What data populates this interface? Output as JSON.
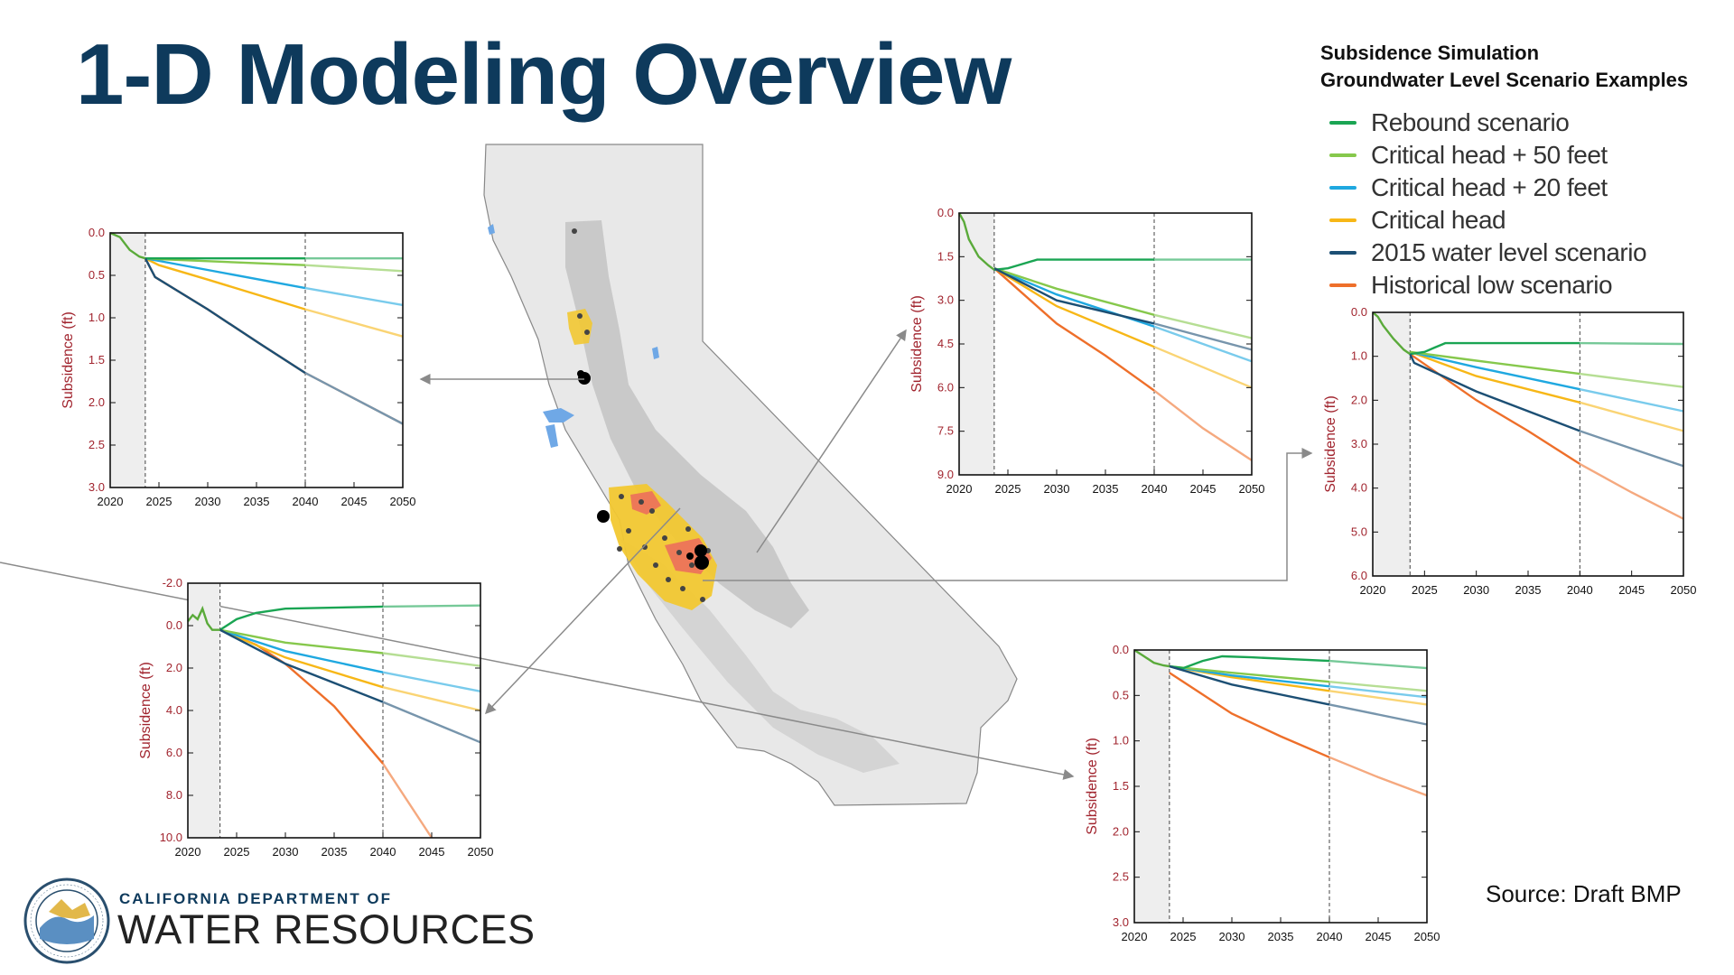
{
  "page": {
    "title": "1-D Modeling Overview",
    "source": "Source: Draft BMP"
  },
  "legend": {
    "heading_line1": "Subsidence Simulation",
    "heading_line2": "Groundwater Level Scenario Examples",
    "items": [
      {
        "label": "Rebound scenario",
        "color": "#1aa553"
      },
      {
        "label": "Critical head + 50 feet",
        "color": "#86c84c"
      },
      {
        "label": "Critical head + 20 feet",
        "color": "#1fa8e0"
      },
      {
        "label": "Critical head",
        "color": "#f7b717"
      },
      {
        "label": "2015 water level scenario",
        "color": "#1c4f74"
      },
      {
        "label": "Historical low scenario",
        "color": "#ee6f2a"
      }
    ]
  },
  "logo": {
    "line1": "CALIFORNIA DEPARTMENT OF",
    "line2": "WATER RESOURCES",
    "seal_text": "DEPARTMENT OF WATER RESOURCES · STATE OF CALIFORNIA ·"
  },
  "colors": {
    "title": "#0e3a5c",
    "axis_label": "#a1242e",
    "rebound": "#1aa553",
    "ch50": "#86c84c",
    "ch20": "#1fa8e0",
    "critical": "#f7b717",
    "wl2015": "#1c4f74",
    "histlow": "#ee6f2a",
    "map_land": "#e8e8e8",
    "map_valley": "#c9c9c9"
  },
  "chart_data": [
    {
      "type": "line",
      "id": "upper-left",
      "ylabel": "Subsidence (ft)",
      "x_ticks": [
        "2020",
        "2025",
        "2030",
        "2035",
        "2040",
        "2045",
        "2050"
      ],
      "y_ticks": [
        "0.0",
        "0.5",
        "1.0",
        "1.5",
        "2.0",
        "2.5",
        "3.0"
      ],
      "xlim": [
        2020,
        2050
      ],
      "ylim": [
        0,
        3
      ],
      "y_inverted": true,
      "history_shade": [
        2020,
        2023.6
      ],
      "dashed_x": [
        2023.6,
        2040
      ],
      "history": [
        [
          2020,
          0
        ],
        [
          2021,
          0.05
        ],
        [
          2022,
          0.2
        ],
        [
          2023,
          0.28
        ],
        [
          2023.6,
          0.3
        ]
      ],
      "series": [
        {
          "key": "rebound",
          "points": [
            [
              2023.6,
              0.3
            ],
            [
              2024.5,
              0.3
            ],
            [
              2050,
              0.3
            ]
          ]
        },
        {
          "key": "ch50",
          "points": [
            [
              2023.6,
              0.3
            ],
            [
              2025,
              0.31
            ],
            [
              2040,
              0.38
            ],
            [
              2050,
              0.45
            ]
          ]
        },
        {
          "key": "ch20",
          "points": [
            [
              2023.6,
              0.3
            ],
            [
              2025,
              0.33
            ],
            [
              2040,
              0.65
            ],
            [
              2050,
              0.85
            ]
          ]
        },
        {
          "key": "critical",
          "points": [
            [
              2023.6,
              0.3
            ],
            [
              2025,
              0.38
            ],
            [
              2030,
              0.55
            ],
            [
              2040,
              0.9
            ],
            [
              2050,
              1.22
            ]
          ]
        },
        {
          "key": "wl2015",
          "points": [
            [
              2023.6,
              0.3
            ],
            [
              2024.6,
              0.52
            ],
            [
              2030,
              0.9
            ],
            [
              2035,
              1.28
            ],
            [
              2040,
              1.65
            ],
            [
              2045,
              1.95
            ],
            [
              2050,
              2.25
            ]
          ]
        },
        {
          "key": "histlow",
          "points": [
            [
              2023.6,
              0.3
            ],
            [
              2024.6,
              0.52
            ],
            [
              2030,
              0.9
            ],
            [
              2035,
              1.28
            ],
            [
              2040,
              1.65
            ],
            [
              2045,
              1.95
            ],
            [
              2050,
              2.25
            ]
          ]
        }
      ]
    },
    {
      "type": "line",
      "id": "lower-left",
      "ylabel": "Subsidence (ft)",
      "x_ticks": [
        "2020",
        "2025",
        "2030",
        "2035",
        "2040",
        "2045",
        "2050"
      ],
      "y_ticks": [
        "-2.0",
        "0.0",
        "2.0",
        "4.0",
        "6.0",
        "8.0",
        "10.0"
      ],
      "xlim": [
        2020,
        2050
      ],
      "ylim": [
        -2,
        10
      ],
      "y_inverted": true,
      "history_shade": [
        2020,
        2023.3
      ],
      "dashed_x": [
        2023.3,
        2040
      ],
      "history": [
        [
          2020,
          -0.2
        ],
        [
          2020.5,
          -0.5
        ],
        [
          2021,
          -0.3
        ],
        [
          2021.5,
          -0.8
        ],
        [
          2022,
          -0.1
        ],
        [
          2022.5,
          0.2
        ],
        [
          2023.3,
          0.2
        ]
      ],
      "series": [
        {
          "key": "rebound",
          "points": [
            [
              2023.3,
              0.2
            ],
            [
              2025,
              -0.3
            ],
            [
              2027,
              -0.6
            ],
            [
              2030,
              -0.8
            ],
            [
              2040,
              -0.9
            ],
            [
              2050,
              -0.95
            ]
          ]
        },
        {
          "key": "ch50",
          "points": [
            [
              2023.3,
              0.2
            ],
            [
              2030,
              0.8
            ],
            [
              2040,
              1.3
            ],
            [
              2050,
              1.9
            ]
          ]
        },
        {
          "key": "ch20",
          "points": [
            [
              2023.3,
              0.2
            ],
            [
              2030,
              1.2
            ],
            [
              2040,
              2.2
            ],
            [
              2050,
              3.1
            ]
          ]
        },
        {
          "key": "critical",
          "points": [
            [
              2023.3,
              0.2
            ],
            [
              2030,
              1.5
            ],
            [
              2040,
              2.9
            ],
            [
              2050,
              4.0
            ]
          ]
        },
        {
          "key": "wl2015",
          "points": [
            [
              2023.3,
              0.2
            ],
            [
              2030,
              1.8
            ],
            [
              2040,
              3.6
            ],
            [
              2050,
              5.5
            ]
          ]
        },
        {
          "key": "histlow",
          "points": [
            [
              2023.3,
              0.2
            ],
            [
              2027,
              0.9
            ],
            [
              2030,
              1.8
            ],
            [
              2035,
              3.8
            ],
            [
              2040,
              6.5
            ],
            [
              2045,
              10.0
            ]
          ]
        }
      ]
    },
    {
      "type": "line",
      "id": "upper-center-right",
      "ylabel": "Subsidence (ft)",
      "x_ticks": [
        "2020",
        "2025",
        "2030",
        "2035",
        "2040",
        "2045",
        "2050"
      ],
      "y_ticks": [
        "0.0",
        "1.5",
        "3.0",
        "4.5",
        "6.0",
        "7.5",
        "9.0"
      ],
      "xlim": [
        2020,
        2050
      ],
      "ylim": [
        0,
        9
      ],
      "y_inverted": true,
      "history_shade": [
        2020,
        2023.6
      ],
      "dashed_x": [
        2023.6,
        2040
      ],
      "history": [
        [
          2020,
          0
        ],
        [
          2020.5,
          0.3
        ],
        [
          2021,
          0.9
        ],
        [
          2022,
          1.5
        ],
        [
          2023,
          1.8
        ],
        [
          2023.6,
          1.95
        ]
      ],
      "series": [
        {
          "key": "rebound",
          "points": [
            [
              2023.6,
              1.95
            ],
            [
              2025,
              1.9
            ],
            [
              2026,
              1.8
            ],
            [
              2028,
              1.6
            ],
            [
              2030,
              1.6
            ],
            [
              2050,
              1.6
            ]
          ]
        },
        {
          "key": "ch50",
          "points": [
            [
              2023.6,
              1.9
            ],
            [
              2030,
              2.6
            ],
            [
              2040,
              3.5
            ],
            [
              2050,
              4.3
            ]
          ]
        },
        {
          "key": "ch20",
          "points": [
            [
              2023.6,
              1.9
            ],
            [
              2030,
              2.8
            ],
            [
              2040,
              3.9
            ],
            [
              2050,
              5.1
            ]
          ]
        },
        {
          "key": "critical",
          "points": [
            [
              2023.6,
              1.9
            ],
            [
              2030,
              3.2
            ],
            [
              2040,
              4.6
            ],
            [
              2050,
              6.0
            ]
          ]
        },
        {
          "key": "wl2015",
          "points": [
            [
              2023.6,
              1.9
            ],
            [
              2030,
              3.0
            ],
            [
              2040,
              3.8
            ],
            [
              2050,
              4.7
            ]
          ]
        },
        {
          "key": "histlow",
          "points": [
            [
              2023.6,
              1.9
            ],
            [
              2030,
              3.8
            ],
            [
              2035,
              4.9
            ],
            [
              2040,
              6.1
            ],
            [
              2045,
              7.4
            ],
            [
              2050,
              8.5
            ]
          ]
        }
      ]
    },
    {
      "type": "line",
      "id": "right",
      "ylabel": "Subsidence (ft)",
      "x_ticks": [
        "2020",
        "2025",
        "2030",
        "2035",
        "2040",
        "2045",
        "2050"
      ],
      "y_ticks": [
        "0.0",
        "1.0",
        "2.0",
        "3.0",
        "4.0",
        "5.0",
        "6.0"
      ],
      "xlim": [
        2020,
        2050
      ],
      "ylim": [
        0,
        6
      ],
      "y_inverted": true,
      "history_shade": [
        2020,
        2023.6
      ],
      "dashed_x": [
        2023.6,
        2040
      ],
      "history": [
        [
          2020,
          0
        ],
        [
          2020.5,
          0.1
        ],
        [
          2021,
          0.3
        ],
        [
          2022,
          0.6
        ],
        [
          2023,
          0.85
        ],
        [
          2023.6,
          0.95
        ]
      ],
      "series": [
        {
          "key": "rebound",
          "points": [
            [
              2023.6,
              0.95
            ],
            [
              2025,
              0.9
            ],
            [
              2026,
              0.8
            ],
            [
              2027,
              0.7
            ],
            [
              2030,
              0.7
            ],
            [
              2040,
              0.7
            ],
            [
              2050,
              0.72
            ]
          ]
        },
        {
          "key": "ch50",
          "points": [
            [
              2023.6,
              0.9
            ],
            [
              2030,
              1.1
            ],
            [
              2040,
              1.4
            ],
            [
              2050,
              1.7
            ]
          ]
        },
        {
          "key": "ch20",
          "points": [
            [
              2023.6,
              0.9
            ],
            [
              2030,
              1.25
            ],
            [
              2040,
              1.75
            ],
            [
              2050,
              2.25
            ]
          ]
        },
        {
          "key": "critical",
          "points": [
            [
              2023.6,
              0.9
            ],
            [
              2030,
              1.45
            ],
            [
              2040,
              2.05
            ],
            [
              2050,
              2.7
            ]
          ]
        },
        {
          "key": "wl2015",
          "points": [
            [
              2023.6,
              0.95
            ],
            [
              2024,
              1.15
            ],
            [
              2030,
              1.8
            ],
            [
              2040,
              2.7
            ],
            [
              2050,
              3.5
            ]
          ]
        },
        {
          "key": "histlow",
          "points": [
            [
              2023.6,
              0.95
            ],
            [
              2030,
              2.0
            ],
            [
              2035,
              2.7
            ],
            [
              2040,
              3.45
            ],
            [
              2045,
              4.1
            ],
            [
              2050,
              4.7
            ]
          ]
        }
      ]
    },
    {
      "type": "line",
      "id": "lower-right",
      "ylabel": "Subsidence (ft)",
      "x_ticks": [
        "2020",
        "2025",
        "2030",
        "2035",
        "2040",
        "2045",
        "2050"
      ],
      "y_ticks": [
        "0.0",
        "0.5",
        "1.0",
        "1.5",
        "2.0",
        "2.5",
        "3.0"
      ],
      "xlim": [
        2020,
        2050
      ],
      "ylim": [
        0,
        3
      ],
      "y_inverted": true,
      "history_shade": [
        2020,
        2023.6
      ],
      "dashed_x": [
        2023.6,
        2040
      ],
      "history": [
        [
          2020,
          0
        ],
        [
          2021,
          0.07
        ],
        [
          2022,
          0.14
        ],
        [
          2023,
          0.17
        ],
        [
          2023.6,
          0.18
        ]
      ],
      "series": [
        {
          "key": "rebound",
          "points": [
            [
              2023.6,
              0.18
            ],
            [
              2025,
              0.2
            ],
            [
              2027,
              0.12
            ],
            [
              2029,
              0.07
            ],
            [
              2032,
              0.08
            ],
            [
              2040,
              0.12
            ],
            [
              2050,
              0.2
            ]
          ]
        },
        {
          "key": "ch50",
          "points": [
            [
              2023.6,
              0.18
            ],
            [
              2030,
              0.25
            ],
            [
              2040,
              0.35
            ],
            [
              2050,
              0.45
            ]
          ]
        },
        {
          "key": "ch20",
          "points": [
            [
              2023.6,
              0.18
            ],
            [
              2030,
              0.28
            ],
            [
              2040,
              0.4
            ],
            [
              2050,
              0.52
            ]
          ]
        },
        {
          "key": "critical",
          "points": [
            [
              2023.6,
              0.18
            ],
            [
              2030,
              0.3
            ],
            [
              2040,
              0.45
            ],
            [
              2050,
              0.6
            ]
          ]
        },
        {
          "key": "wl2015",
          "points": [
            [
              2023.6,
              0.18
            ],
            [
              2030,
              0.38
            ],
            [
              2040,
              0.6
            ],
            [
              2050,
              0.82
            ]
          ]
        },
        {
          "key": "histlow",
          "points": [
            [
              2023.6,
              0.25
            ],
            [
              2030,
              0.7
            ],
            [
              2035,
              0.95
            ],
            [
              2040,
              1.18
            ],
            [
              2045,
              1.4
            ],
            [
              2050,
              1.6
            ]
          ]
        }
      ]
    }
  ]
}
